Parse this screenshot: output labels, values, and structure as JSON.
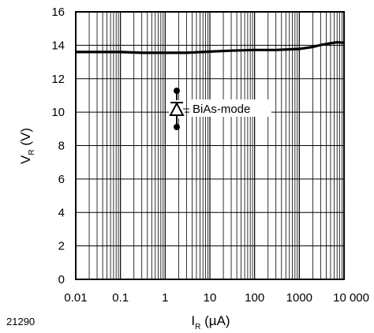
{
  "chart_data": {
    "type": "line",
    "x_scale": "log",
    "xlim": [
      0.01,
      10000
    ],
    "ylim": [
      0,
      16
    ],
    "grid": true,
    "x_ticks": [
      "0.01",
      "0.1",
      "1",
      "10",
      "100",
      "1000",
      "10 000"
    ],
    "y_ticks": [
      "0",
      "2",
      "4",
      "6",
      "8",
      "10",
      "12",
      "14",
      "16"
    ],
    "xlabel": {
      "main": "I",
      "sub": "R",
      "unit": " (µA)"
    },
    "ylabel": {
      "main": "V",
      "sub": "R",
      "unit": " (V)"
    },
    "annotation": "BiAs-mode",
    "figure_number": "21290",
    "series": [
      {
        "x": [
          0.01,
          0.03,
          0.1,
          0.3,
          1,
          3,
          10,
          30,
          100,
          300,
          1000,
          2000,
          3000,
          5000,
          7000,
          10000
        ],
        "y": [
          13.6,
          13.6,
          13.6,
          13.55,
          13.55,
          13.55,
          13.62,
          13.68,
          13.72,
          13.72,
          13.78,
          13.9,
          14.02,
          14.12,
          14.18,
          14.15
        ]
      }
    ]
  }
}
